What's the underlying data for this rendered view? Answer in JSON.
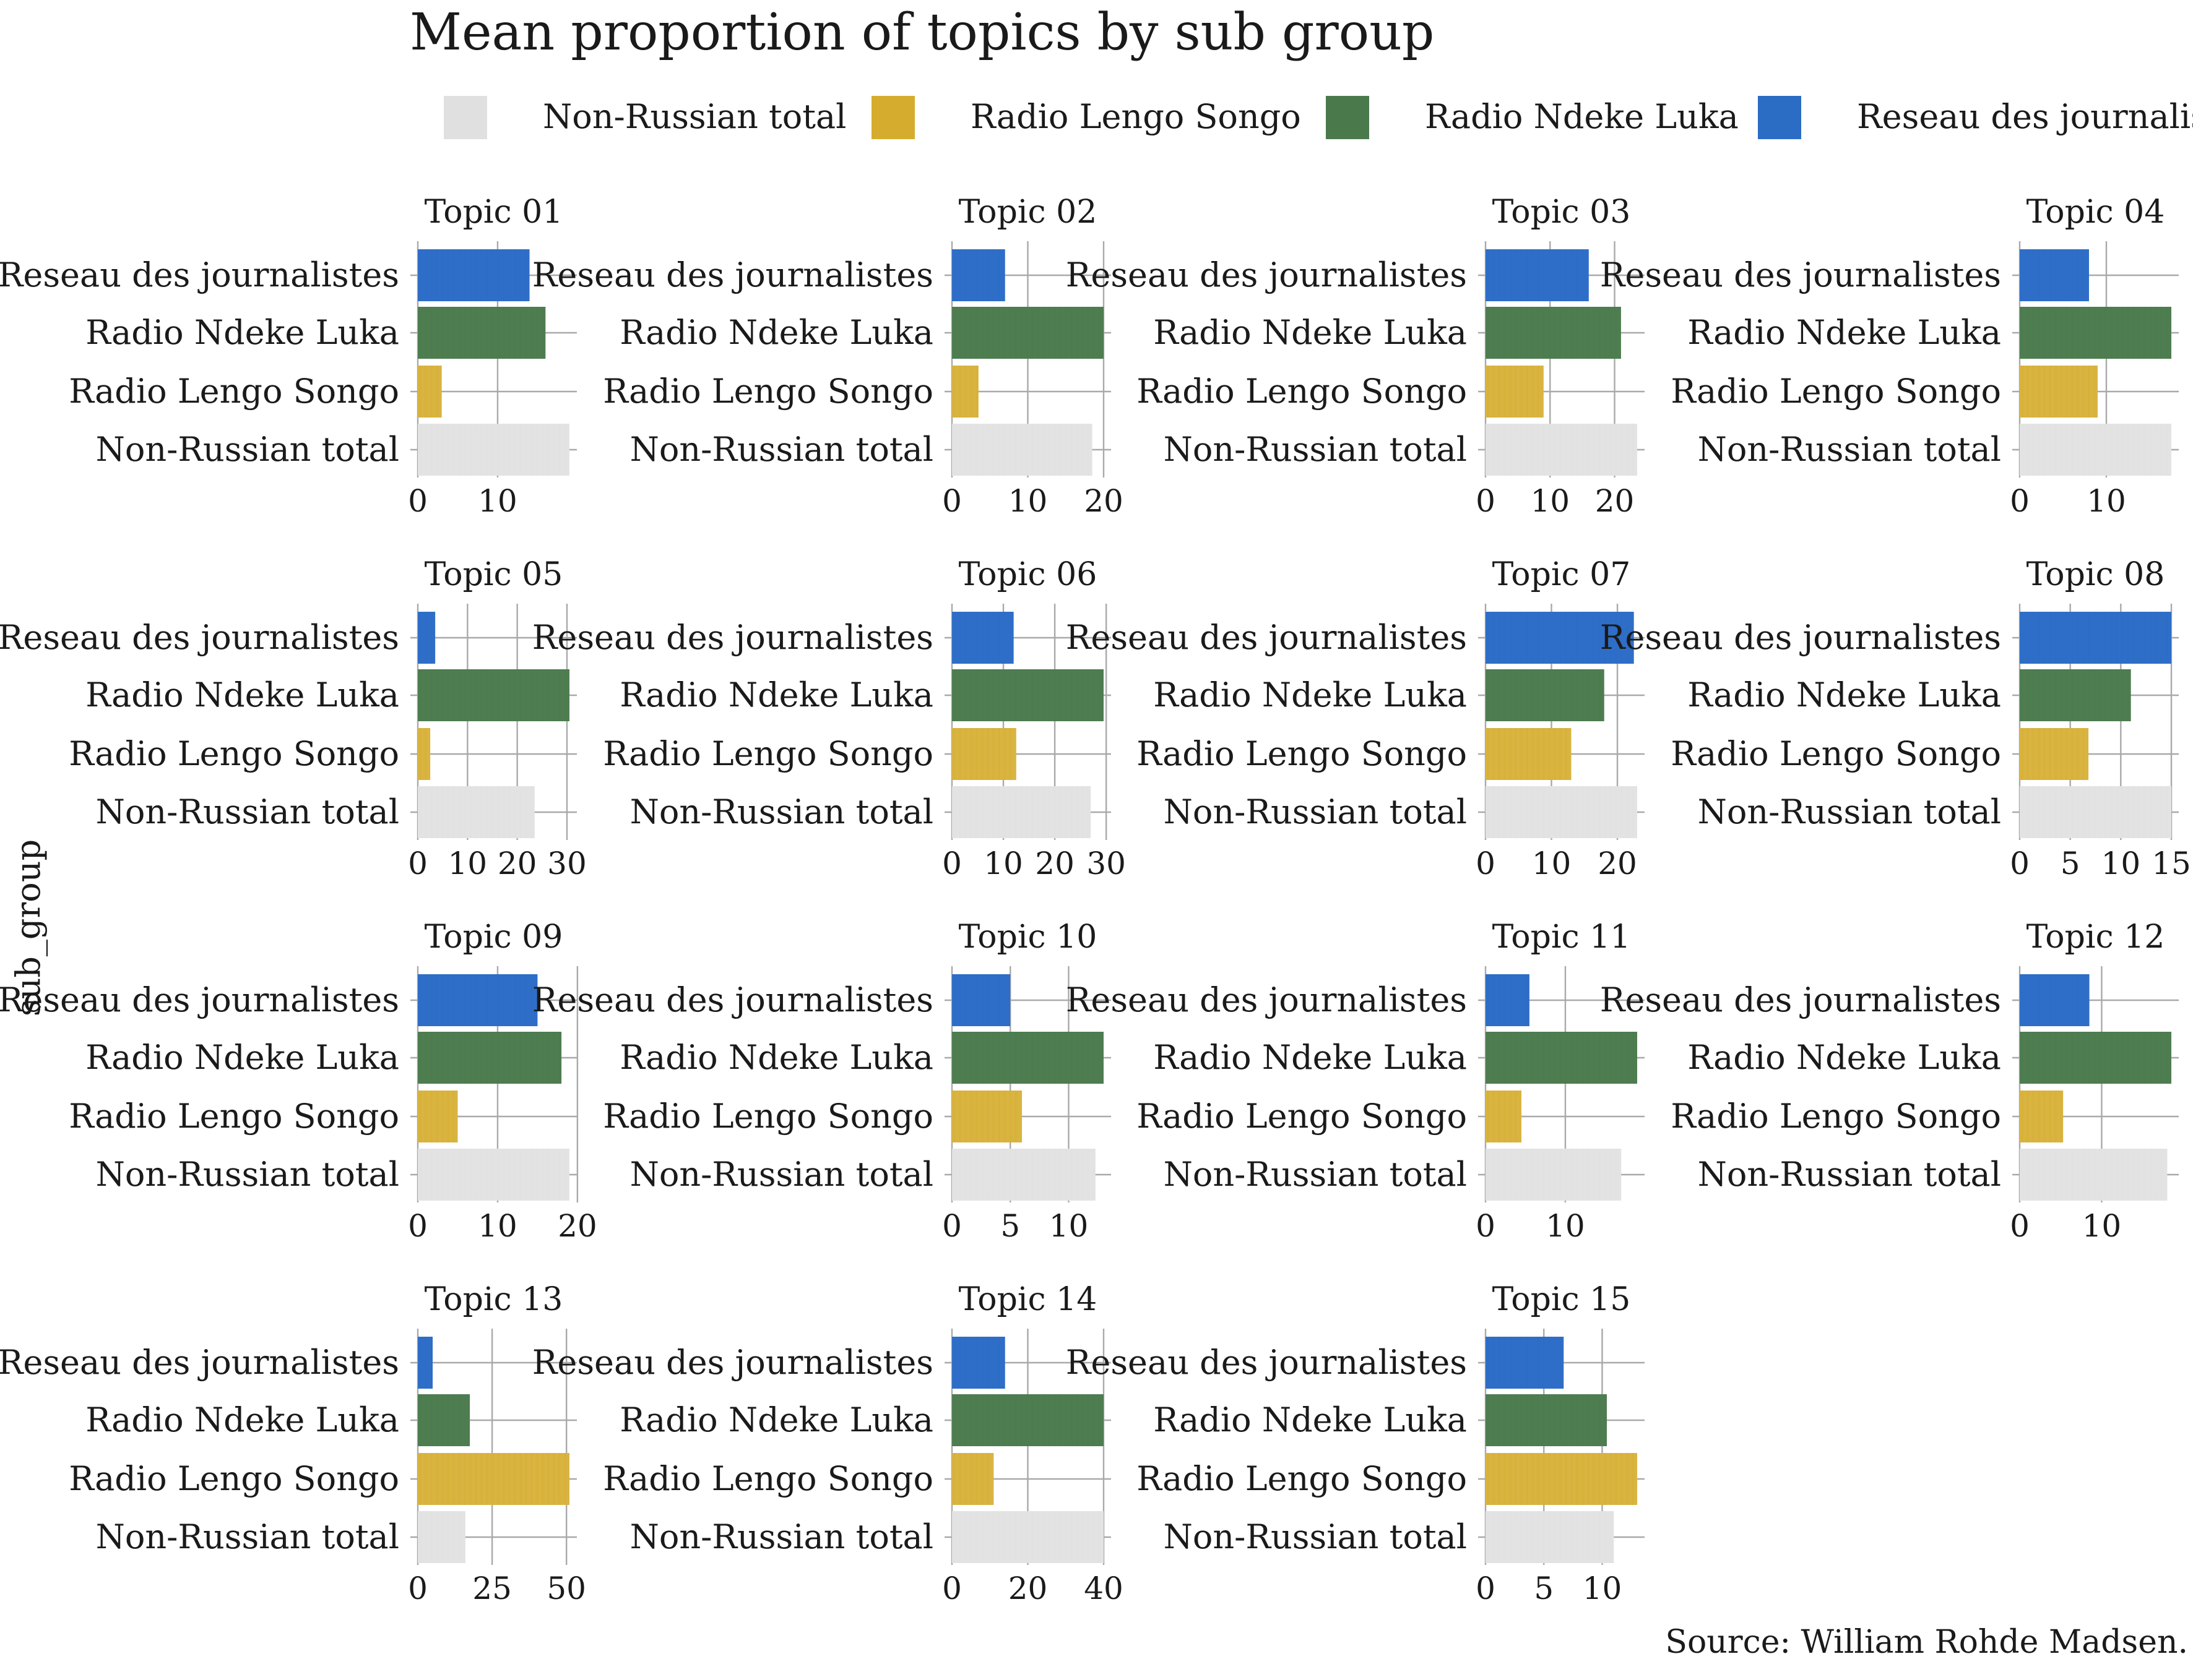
{
  "title": "Mean proportion of topics by sub group",
  "caption": "Source: William Rohde Madsen.",
  "chart_data": {
    "type": "bar",
    "orientation": "horizontal",
    "facet_layout": "4 columns, 4 rows",
    "y_title": "sub_group",
    "categories": [
      "Reseau des journalistes",
      "Radio Ndeke Luka",
      "Radio Lengo Songo",
      "Non-Russian total"
    ],
    "legend": [
      {
        "name": "Non-Russian total",
        "color": "#e0e0e0"
      },
      {
        "name": "Radio Lengo Songo",
        "color": "#d6ac2e"
      },
      {
        "name": "Radio Ndeke Luka",
        "color": "#4a7a4c"
      },
      {
        "name": "Reseau des journalistes",
        "color": "#2b6cc4"
      }
    ],
    "legend_position": "top",
    "grid": true,
    "panels": [
      {
        "title": "Topic 01",
        "values": {
          "Reseau des journalistes": 14,
          "Radio Ndeke Luka": 16,
          "Radio Lengo Songo": 3,
          "Non-Russian total": 19
        },
        "xlim": [
          0,
          19
        ],
        "ticks": [
          0,
          10
        ]
      },
      {
        "title": "Topic 02",
        "values": {
          "Reseau des journalistes": 7,
          "Radio Ndeke Luka": 20,
          "Radio Lengo Songo": 3.5,
          "Non-Russian total": 18.5
        },
        "xlim": [
          0,
          20
        ],
        "ticks": [
          0,
          10,
          20
        ]
      },
      {
        "title": "Topic 03",
        "values": {
          "Reseau des journalistes": 16,
          "Radio Ndeke Luka": 21,
          "Radio Lengo Songo": 9,
          "Non-Russian total": 23.5
        },
        "xlim": [
          0,
          23.5
        ],
        "ticks": [
          0,
          10,
          20
        ]
      },
      {
        "title": "Topic 04",
        "values": {
          "Reseau des journalistes": 8,
          "Radio Ndeke Luka": 17.5,
          "Radio Lengo Songo": 9,
          "Non-Russian total": 17.5
        },
        "xlim": [
          0,
          17.5
        ],
        "ticks": [
          0,
          10
        ]
      },
      {
        "title": "Topic 05",
        "values": {
          "Reseau des journalistes": 3.5,
          "Radio Ndeke Luka": 30.5,
          "Radio Lengo Songo": 2.5,
          "Non-Russian total": 23.5
        },
        "xlim": [
          0,
          30.5
        ],
        "ticks": [
          0,
          10,
          20,
          30
        ]
      },
      {
        "title": "Topic 06",
        "values": {
          "Reseau des journalistes": 12,
          "Radio Ndeke Luka": 29.5,
          "Radio Lengo Songo": 12.5,
          "Non-Russian total": 27
        },
        "xlim": [
          0,
          29.5
        ],
        "ticks": [
          0,
          10,
          20,
          30
        ]
      },
      {
        "title": "Topic 07",
        "values": {
          "Reseau des journalistes": 22.5,
          "Radio Ndeke Luka": 18,
          "Radio Lengo Songo": 13,
          "Non-Russian total": 23
        },
        "xlim": [
          0,
          23
        ],
        "ticks": [
          0,
          10,
          20
        ]
      },
      {
        "title": "Topic 08",
        "values": {
          "Reseau des journalistes": 15,
          "Radio Ndeke Luka": 11,
          "Radio Lengo Songo": 6.8,
          "Non-Russian total": 15
        },
        "xlim": [
          0,
          15
        ],
        "ticks": [
          0,
          5,
          10,
          15
        ]
      },
      {
        "title": "Topic 09",
        "values": {
          "Reseau des journalistes": 15,
          "Radio Ndeke Luka": 18,
          "Radio Lengo Songo": 5,
          "Non-Russian total": 19
        },
        "xlim": [
          0,
          19
        ],
        "ticks": [
          0,
          10,
          20
        ]
      },
      {
        "title": "Topic 10",
        "values": {
          "Reseau des journalistes": 5,
          "Radio Ndeke Luka": 13,
          "Radio Lengo Songo": 6,
          "Non-Russian total": 12.3
        },
        "xlim": [
          0,
          13
        ],
        "ticks": [
          0,
          5,
          10
        ]
      },
      {
        "title": "Topic 11",
        "values": {
          "Reseau des journalistes": 5.5,
          "Radio Ndeke Luka": 19,
          "Radio Lengo Songo": 4.5,
          "Non-Russian total": 17
        },
        "xlim": [
          0,
          19
        ],
        "ticks": [
          0,
          10
        ]
      },
      {
        "title": "Topic 12",
        "values": {
          "Reseau des journalistes": 8.5,
          "Radio Ndeke Luka": 18.5,
          "Radio Lengo Songo": 5.3,
          "Non-Russian total": 18
        },
        "xlim": [
          0,
          18.5
        ],
        "ticks": [
          0,
          10
        ]
      },
      {
        "title": "Topic 13",
        "values": {
          "Reseau des journalistes": 5,
          "Radio Ndeke Luka": 17.5,
          "Radio Lengo Songo": 51,
          "Non-Russian total": 16
        },
        "xlim": [
          0,
          51
        ],
        "ticks": [
          0,
          25,
          50
        ]
      },
      {
        "title": "Topic 14",
        "values": {
          "Reseau des journalistes": 14,
          "Radio Ndeke Luka": 40,
          "Radio Lengo Songo": 11,
          "Non-Russian total": 40
        },
        "xlim": [
          0,
          40
        ],
        "ticks": [
          0,
          20,
          40
        ]
      },
      {
        "title": "Topic 15",
        "values": {
          "Reseau des journalistes": 6.7,
          "Radio Ndeke Luka": 10.4,
          "Radio Lengo Songo": 13,
          "Non-Russian total": 11
        },
        "xlim": [
          0,
          13
        ],
        "ticks": [
          0,
          5,
          10
        ]
      }
    ]
  }
}
